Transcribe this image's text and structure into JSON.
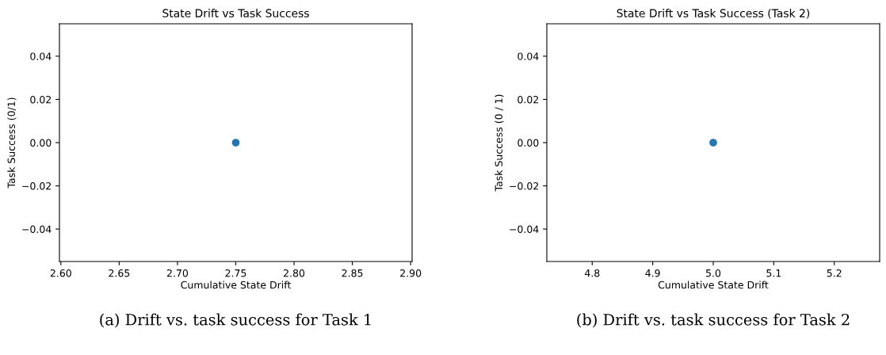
{
  "chart_data": [
    {
      "type": "scatter",
      "title": "State Drift vs Task Success",
      "xlabel": "Cumulative State Drift",
      "ylabel": "Task Success (0/1)",
      "x": [
        2.75
      ],
      "series": [
        {
          "color": "#1f77b4",
          "values": [
            0
          ]
        }
      ],
      "xlim": [
        2.59875,
        2.90125
      ],
      "xticks": [
        {
          "value": 2.6,
          "label": "2.60"
        },
        {
          "value": 2.65,
          "label": "2.65"
        },
        {
          "value": 2.7,
          "label": "2.70"
        },
        {
          "value": 2.75,
          "label": "2.75"
        },
        {
          "value": 2.8,
          "label": "2.80"
        },
        {
          "value": 2.85,
          "label": "2.85"
        },
        {
          "value": 2.9,
          "label": "2.90"
        }
      ],
      "ylim": [
        -0.055,
        0.055
      ],
      "yticks": [
        {
          "value": -0.04,
          "label": "−0.04"
        },
        {
          "value": -0.02,
          "label": "−0.02"
        },
        {
          "value": 0,
          "label": "0.00"
        },
        {
          "value": 0.02,
          "label": "0.02"
        },
        {
          "value": 0.04,
          "label": "0.04"
        }
      ],
      "annotations": [
        "(a) Drift vs. task success for Task 1"
      ]
    },
    {
      "type": "scatter",
      "title": "State Drift vs Task Success (Task 2)",
      "xlabel": "Cumulative State Drift",
      "ylabel": "Task Success (0 / 1)",
      "x": [
        5.0
      ],
      "series": [
        {
          "color": "#1f77b4",
          "values": [
            0
          ]
        }
      ],
      "xlim": [
        4.725,
        5.275
      ],
      "xticks": [
        {
          "value": 4.8,
          "label": "4.8"
        },
        {
          "value": 4.9,
          "label": "4.9"
        },
        {
          "value": 5.0,
          "label": "5.0"
        },
        {
          "value": 5.1,
          "label": "5.1"
        },
        {
          "value": 5.2,
          "label": "5.2"
        }
      ],
      "ylim": [
        -0.055,
        0.055
      ],
      "yticks": [
        {
          "value": -0.04,
          "label": "−0.04"
        },
        {
          "value": -0.02,
          "label": "−0.02"
        },
        {
          "value": 0,
          "label": "0.00"
        },
        {
          "value": 0.02,
          "label": "0.02"
        },
        {
          "value": 0.04,
          "label": "0.04"
        }
      ],
      "annotations": [
        "(b) Drift vs. task success for Task 2"
      ]
    }
  ]
}
